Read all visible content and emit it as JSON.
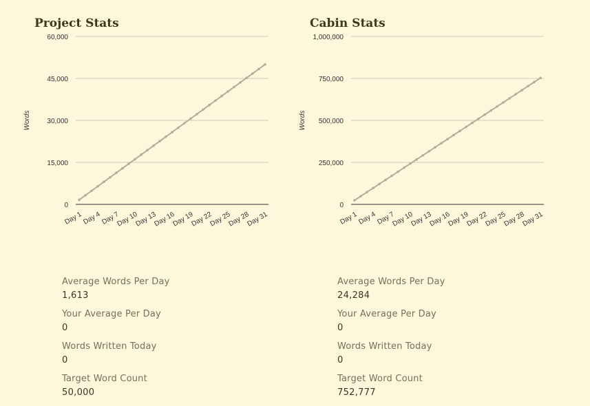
{
  "panels": [
    {
      "title": "Project Stats",
      "chart_data": {
        "type": "line",
        "ylabel": "Words",
        "ylim": [
          0,
          60000
        ],
        "yticks": [
          0,
          15000,
          30000,
          45000,
          60000
        ],
        "ytick_labels": [
          "0",
          "15,000",
          "30,000",
          "45,000",
          "60,000"
        ],
        "categories": [
          "Day 1",
          "Day 2",
          "Day 3",
          "Day 4",
          "Day 5",
          "Day 6",
          "Day 7",
          "Day 8",
          "Day 9",
          "Day 10",
          "Day 11",
          "Day 12",
          "Day 13",
          "Day 14",
          "Day 15",
          "Day 16",
          "Day 17",
          "Day 18",
          "Day 19",
          "Day 20",
          "Day 21",
          "Day 22",
          "Day 23",
          "Day 24",
          "Day 25",
          "Day 26",
          "Day 27",
          "Day 28",
          "Day 29",
          "Day 30",
          "Day 31"
        ],
        "xtick_labels": [
          "Day 1",
          "Day 4",
          "Day 7",
          "Day 10",
          "Day 13",
          "Day 16",
          "Day 19",
          "Day 22",
          "Day 25",
          "Day 28",
          "Day 31"
        ],
        "series": [
          {
            "values": [
              1613,
              3226,
              4839,
              6452,
              8065,
              9677,
              11290,
              12903,
              14516,
              16129,
              17742,
              19355,
              20968,
              22581,
              24194,
              25806,
              27419,
              29032,
              30645,
              32258,
              33871,
              35484,
              37097,
              38710,
              40323,
              41935,
              43548,
              45161,
              46774,
              48387,
              50000
            ]
          }
        ],
        "line_color": "#b0b09a",
        "grid": true
      },
      "stats": [
        {
          "label": "Average Words Per Day",
          "value": "1,613"
        },
        {
          "label": "Your Average Per Day",
          "value": "0"
        },
        {
          "label": "Words Written Today",
          "value": "0"
        },
        {
          "label": "Target Word Count",
          "value": "50,000"
        }
      ]
    },
    {
      "title": "Cabin Stats",
      "chart_data": {
        "type": "line",
        "ylabel": "Words",
        "ylim": [
          0,
          1000000
        ],
        "yticks": [
          0,
          250000,
          500000,
          750000,
          1000000
        ],
        "ytick_labels": [
          "0",
          "250,000",
          "500,000",
          "750,000",
          "1,000,000"
        ],
        "categories": [
          "Day 1",
          "Day 2",
          "Day 3",
          "Day 4",
          "Day 5",
          "Day 6",
          "Day 7",
          "Day 8",
          "Day 9",
          "Day 10",
          "Day 11",
          "Day 12",
          "Day 13",
          "Day 14",
          "Day 15",
          "Day 16",
          "Day 17",
          "Day 18",
          "Day 19",
          "Day 20",
          "Day 21",
          "Day 22",
          "Day 23",
          "Day 24",
          "Day 25",
          "Day 26",
          "Day 27",
          "Day 28",
          "Day 29",
          "Day 30",
          "Day 31"
        ],
        "xtick_labels": [
          "Day 1",
          "Day 4",
          "Day 7",
          "Day 10",
          "Day 13",
          "Day 16",
          "Day 19",
          "Day 22",
          "Day 25",
          "Day 28",
          "Day 31"
        ],
        "series": [
          {
            "values": [
              24284,
              48566,
              72850,
              97134,
              121417,
              145700,
              169984,
              194268,
              218551,
              242834,
              267118,
              291402,
              315685,
              339968,
              364252,
              388536,
              412820,
              437103,
              461386,
              485670,
              509954,
              534238,
              558521,
              582804,
              607088,
              631372,
              655656,
              679940,
              704224,
              728508,
              752777
            ]
          }
        ],
        "line_color": "#b0b09a",
        "grid": true
      },
      "stats": [
        {
          "label": "Average Words Per Day",
          "value": "24,284"
        },
        {
          "label": "Your Average Per Day",
          "value": "0"
        },
        {
          "label": "Words Written Today",
          "value": "0"
        },
        {
          "label": "Target Word Count",
          "value": "752,777"
        }
      ]
    }
  ]
}
